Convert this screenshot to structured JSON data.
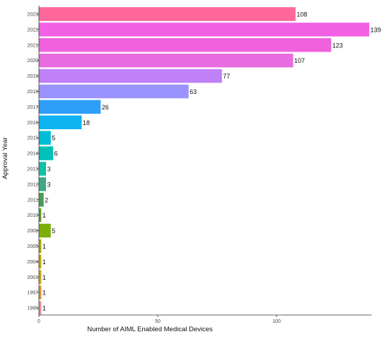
{
  "chart_data": {
    "type": "bar",
    "orientation": "horizontal",
    "xlabel": "Number of AIML Enabled Medical Devices",
    "ylabel": "Approval Year",
    "xlim": [
      0,
      140
    ],
    "xticks": [
      0,
      50,
      100
    ],
    "grid": false,
    "legend": "none",
    "categories": [
      "2023",
      "2022",
      "2021",
      "2020",
      "2019",
      "2018",
      "2017",
      "2016",
      "2015",
      "2014",
      "2013",
      "2012",
      "2011",
      "2010",
      "2008",
      "2005",
      "2004",
      "2001",
      "1997",
      "1995"
    ],
    "values": [
      108,
      139,
      123,
      107,
      77,
      63,
      26,
      18,
      5,
      6,
      3,
      3,
      2,
      1,
      5,
      1,
      1,
      1,
      1,
      1
    ],
    "colors": [
      "#ff6699",
      "#f261e5",
      "#f061de",
      "#e86ce0",
      "#c080f8",
      "#9a93fe",
      "#2f9ef8",
      "#0eb4f2",
      "#00bcd8",
      "#00c0b8",
      "#16bfa7",
      "#3ea887",
      "#4a9b57",
      "#5c9c32",
      "#7caf0a",
      "#a3aa03",
      "#c0a707",
      "#c8a512",
      "#d29630",
      "#e4909a"
    ]
  }
}
